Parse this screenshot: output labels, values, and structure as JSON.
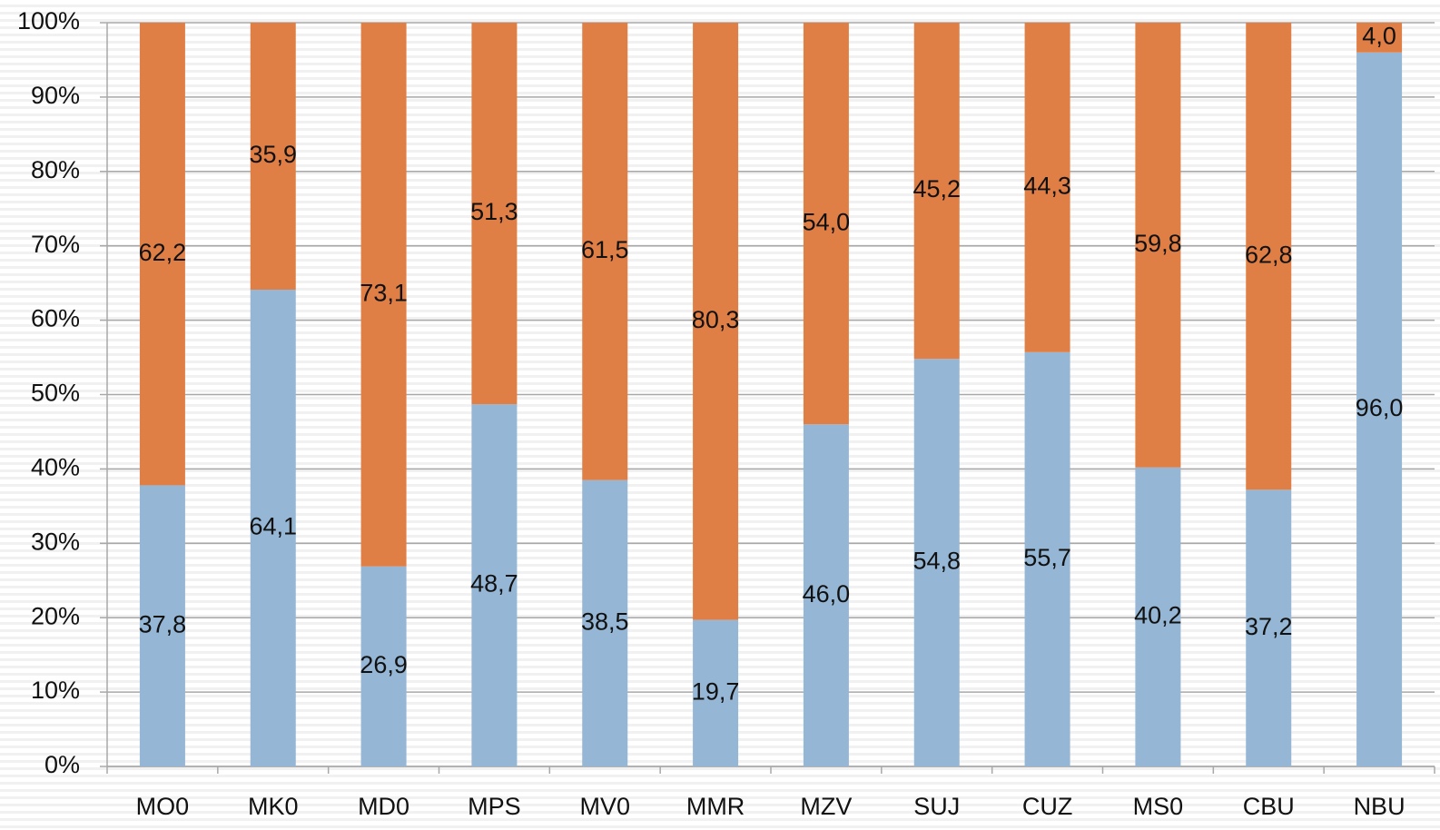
{
  "chart_data": {
    "type": "stacked_bar",
    "categories": [
      "MO0",
      "MK0",
      "MD0",
      "MPS",
      "MV0",
      "MMR",
      "MZV",
      "SUJ",
      "CUZ",
      "MS0",
      "CBU",
      "NBU"
    ],
    "series": [
      {
        "color": "#95b6d4",
        "values": [
          37.8,
          64.1,
          26.9,
          48.7,
          38.5,
          19.7,
          46.0,
          54.8,
          55.7,
          40.2,
          37.2,
          96.0
        ],
        "value_labels": [
          "37,8",
          "64,1",
          "26,9",
          "48,7",
          "38,5",
          "19,7",
          "46,0",
          "54,8",
          "55,7",
          "40,2",
          "37,2",
          "96,0"
        ]
      },
      {
        "color": "#e07f45",
        "values": [
          62.2,
          35.9,
          73.1,
          51.3,
          61.5,
          80.3,
          54.0,
          45.2,
          44.3,
          59.8,
          62.8,
          4.0
        ],
        "value_labels": [
          "62,2",
          "35,9",
          "73,1",
          "51,3",
          "61,5",
          "80,3",
          "54,0",
          "45,2",
          "44,3",
          "59,8",
          "62,8",
          "4,0"
        ]
      }
    ],
    "ylim": [
      0,
      100
    ],
    "yticks": [
      {
        "value": 0,
        "label": "0%"
      },
      {
        "value": 10,
        "label": "10%"
      },
      {
        "value": 20,
        "label": "20%"
      },
      {
        "value": 30,
        "label": "30%"
      },
      {
        "value": 40,
        "label": "40%"
      },
      {
        "value": 50,
        "label": "50%"
      },
      {
        "value": 60,
        "label": "60%"
      },
      {
        "value": 70,
        "label": "70%"
      },
      {
        "value": 80,
        "label": "80%"
      },
      {
        "value": 90,
        "label": "90%"
      },
      {
        "value": 100,
        "label": "100%"
      }
    ],
    "grid": true
  }
}
